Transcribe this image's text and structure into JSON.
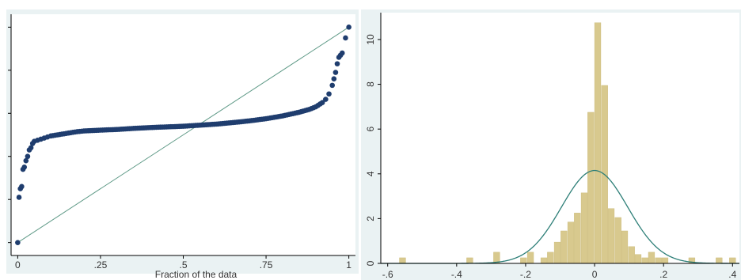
{
  "colors": {
    "panel_background": "#eaf2f3",
    "plot_background": "#ffffff",
    "axis": "#000000",
    "quantile_points": "#1f3d6e",
    "reference_line": "#5f9a87",
    "histogram_bars": "#d8c98e",
    "histogram_bar_edge": "#c9b876",
    "normal_curve": "#2e7f78"
  },
  "chart_data": [
    {
      "type": "scatter",
      "subtype": "quantile plot with reference line",
      "xlabel": "Fraction of the data",
      "ylabel": "",
      "xlim": [
        -0.02,
        1.02
      ],
      "ylim": [
        -0.06,
        1.06
      ],
      "xticks": [
        0,
        0.25,
        0.5,
        0.75,
        1
      ],
      "xtick_labels": [
        "0",
        ".25",
        ".5",
        ".75",
        "1"
      ],
      "yticks": [
        0,
        0.2,
        0.4,
        0.6,
        0.8,
        1.0
      ],
      "ytick_labels": [
        "",
        "",
        "",
        "",
        "",
        ""
      ],
      "grid": false,
      "reference_line": {
        "x": [
          0,
          1
        ],
        "y": [
          0,
          1
        ]
      },
      "points": {
        "x": [
          0.0,
          0.004,
          0.008,
          0.012,
          0.016,
          0.02,
          0.025,
          0.03,
          0.035,
          0.04,
          0.045,
          0.05,
          0.06,
          0.07,
          0.08,
          0.09,
          0.1,
          0.12,
          0.14,
          0.16,
          0.18,
          0.2,
          0.25,
          0.3,
          0.35,
          0.4,
          0.45,
          0.5,
          0.55,
          0.6,
          0.65,
          0.7,
          0.75,
          0.8,
          0.85,
          0.88,
          0.9,
          0.92,
          0.93,
          0.94,
          0.95,
          0.955,
          0.96,
          0.965,
          0.97,
          0.975,
          0.98,
          0.99,
          1.0
        ],
        "y": [
          0.0,
          0.21,
          0.25,
          0.26,
          0.34,
          0.35,
          0.38,
          0.4,
          0.43,
          0.44,
          0.46,
          0.47,
          0.475,
          0.48,
          0.485,
          0.49,
          0.495,
          0.5,
          0.505,
          0.51,
          0.515,
          0.518,
          0.522,
          0.525,
          0.53,
          0.534,
          0.537,
          0.54,
          0.545,
          0.55,
          0.557,
          0.565,
          0.575,
          0.588,
          0.605,
          0.618,
          0.63,
          0.65,
          0.665,
          0.69,
          0.73,
          0.76,
          0.79,
          0.83,
          0.86,
          0.87,
          0.88,
          0.95,
          1.0
        ]
      }
    },
    {
      "type": "bar",
      "subtype": "histogram with normal density overlay",
      "xlabel": "",
      "ylabel": "",
      "xlim": [
        -0.62,
        0.42
      ],
      "ylim": [
        0,
        11.2
      ],
      "xticks": [
        -0.6,
        -0.4,
        -0.2,
        0,
        0.2,
        0.4
      ],
      "xtick_labels": [
        "-.6",
        "-.4",
        "-.2",
        "0",
        ".2",
        ".4"
      ],
      "yticks": [
        0,
        2,
        4,
        6,
        8,
        10
      ],
      "ytick_labels": [
        "0",
        "2",
        "4",
        "6",
        "8",
        "10"
      ],
      "grid": false,
      "bin_width": 0.0195,
      "bins": {
        "x_left": [
          -0.566,
          -0.371,
          -0.293,
          -0.215,
          -0.195,
          -0.156,
          -0.137,
          -0.117,
          -0.098,
          -0.078,
          -0.059,
          -0.039,
          -0.02,
          0.0,
          0.02,
          0.039,
          0.059,
          0.078,
          0.098,
          0.117,
          0.137,
          0.156,
          0.176,
          0.195,
          0.273,
          0.352,
          0.391
        ],
        "values": [
          0.25,
          0.25,
          0.5,
          0.25,
          0.5,
          0.25,
          0.5,
          0.95,
          1.45,
          1.85,
          2.25,
          3.15,
          6.75,
          10.75,
          7.95,
          2.45,
          2.05,
          1.45,
          0.75,
          0.4,
          0.25,
          0.5,
          0.25,
          0.25,
          0.25,
          0.25,
          0.25
        ]
      },
      "normal_curve": {
        "mean": 0.0,
        "sd": 0.096,
        "peak_density": 4.15
      }
    }
  ]
}
